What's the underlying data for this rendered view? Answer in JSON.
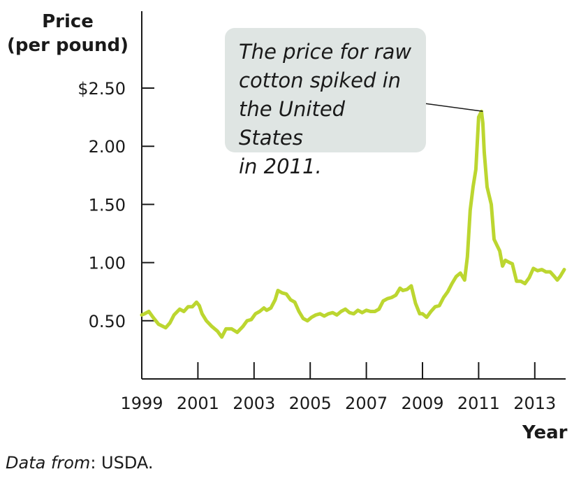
{
  "chart_data": {
    "type": "line",
    "ylabel_line1": "Price",
    "ylabel_line2": "(per pound)",
    "xlabel": "Year",
    "xlim": [
      1999,
      2014.1
    ],
    "ylim": [
      0,
      2.5
    ],
    "x_ticks": [
      1999,
      2001,
      2003,
      2005,
      2007,
      2009,
      2011,
      2013
    ],
    "x_tick_labels": [
      "1999",
      "2001",
      "2003",
      "2005",
      "2007",
      "2009",
      "2011",
      "2013"
    ],
    "y_ticks": [
      0.5,
      1.0,
      1.5,
      2.0,
      2.5
    ],
    "y_tick_labels": [
      "0.50",
      "1.00",
      "1.50",
      "2.00",
      "$2.50"
    ],
    "grid": false,
    "line_color": "#bcd630",
    "annotation": {
      "text": "The price for raw\ncotton spiked in\nthe United States\nin 2011.",
      "x": 2011.15,
      "y": 2.3
    },
    "source_label": "Data from",
    "source_text": ": USDA.",
    "series": [
      {
        "x": [
          1999.0,
          1999.1,
          1999.25,
          1999.4,
          1999.6,
          1999.85,
          2000.0,
          2000.15,
          2000.35,
          2000.5,
          2000.65,
          2000.8,
          2000.95,
          2001.05,
          2001.15,
          2001.3,
          2001.5,
          2001.7,
          2001.85,
          2002.0,
          2002.2,
          2002.4,
          2002.6,
          2002.75,
          2002.9,
          2003.05,
          2003.2,
          2003.35,
          2003.45,
          2003.6,
          2003.75,
          2003.85,
          2004.0,
          2004.15,
          2004.3,
          2004.45,
          2004.6,
          2004.75,
          2004.9,
          2005.05,
          2005.2,
          2005.35,
          2005.5,
          2005.65,
          2005.8,
          2005.95,
          2006.1,
          2006.25,
          2006.4,
          2006.55,
          2006.7,
          2006.85,
          2007.0,
          2007.15,
          2007.3,
          2007.45,
          2007.6,
          2007.75,
          2007.9,
          2008.05,
          2008.2,
          2008.3,
          2008.45,
          2008.6,
          2008.75,
          2008.9,
          2009.0,
          2009.15,
          2009.3,
          2009.45,
          2009.6,
          2009.75,
          2009.9,
          2010.05,
          2010.2,
          2010.35,
          2010.5,
          2010.6,
          2010.7,
          2010.8,
          2010.9,
          2011.0,
          2011.1,
          2011.15,
          2011.2,
          2011.3,
          2011.45,
          2011.55,
          2011.65,
          2011.75,
          2011.85,
          2011.95,
          2012.1,
          2012.2,
          2012.35,
          2012.5,
          2012.65,
          2012.8,
          2012.95,
          2013.1,
          2013.25,
          2013.4,
          2013.55,
          2013.7,
          2013.8,
          2013.9,
          2014.05
        ],
        "y": [
          0.55,
          0.56,
          0.58,
          0.53,
          0.47,
          0.44,
          0.48,
          0.55,
          0.6,
          0.58,
          0.62,
          0.62,
          0.66,
          0.63,
          0.56,
          0.5,
          0.45,
          0.41,
          0.36,
          0.43,
          0.43,
          0.4,
          0.45,
          0.5,
          0.51,
          0.56,
          0.58,
          0.61,
          0.59,
          0.61,
          0.68,
          0.76,
          0.74,
          0.73,
          0.68,
          0.66,
          0.58,
          0.52,
          0.5,
          0.53,
          0.55,
          0.56,
          0.54,
          0.56,
          0.57,
          0.55,
          0.58,
          0.6,
          0.57,
          0.56,
          0.59,
          0.57,
          0.59,
          0.58,
          0.58,
          0.6,
          0.67,
          0.69,
          0.7,
          0.72,
          0.78,
          0.76,
          0.77,
          0.8,
          0.65,
          0.56,
          0.56,
          0.53,
          0.58,
          0.62,
          0.63,
          0.7,
          0.75,
          0.82,
          0.88,
          0.91,
          0.85,
          1.05,
          1.45,
          1.65,
          1.8,
          2.25,
          2.3,
          2.2,
          1.95,
          1.65,
          1.5,
          1.2,
          1.15,
          1.1,
          0.97,
          1.02,
          1.0,
          0.99,
          0.84,
          0.84,
          0.82,
          0.87,
          0.95,
          0.93,
          0.94,
          0.92,
          0.92,
          0.88,
          0.85,
          0.88,
          0.94
        ]
      }
    ]
  }
}
